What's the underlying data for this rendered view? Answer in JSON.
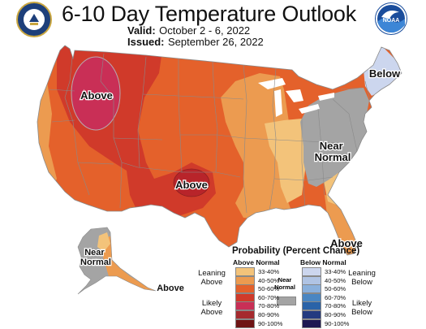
{
  "header": {
    "title": "6-10 Day Temperature Outlook",
    "valid_label": "Valid:",
    "valid_value": "October 2 - 6, 2022",
    "issued_label": "Issued:",
    "issued_value": "September 26, 2022",
    "left_logo_icon": "department-of-commerce-seal",
    "right_logo_icon": "noaa-logo",
    "noaa_logo_text": "NOAA"
  },
  "map": {
    "region_labels": {
      "west_above": "Above",
      "texas_above": "Above",
      "northeast_below": "Below",
      "east_near_normal": "Near Normal",
      "florida_above": "Above",
      "alaska_near_normal": "Near Normal",
      "alaska_above": "Above"
    },
    "colors": {
      "above_33_40": "#f3c37a",
      "above_40_50": "#ec9b50",
      "above_50_60": "#e4612b",
      "above_60_70": "#d03a2a",
      "above_70_80": "#c92f56",
      "above_80_90": "#a52a2e",
      "above_90_100": "#6e1414",
      "near_normal": "#a4a4a4",
      "below_33_40": "#ccd6ee",
      "below_40_50": "#b0c4e4",
      "below_50_60": "#8ab0dc",
      "below_60_70": "#4a86c2",
      "below_70_80": "#2a63a8",
      "below_80_90": "#233a80",
      "below_90_100": "#1d1852",
      "border": "#8a8a8a",
      "water": "#ffffff"
    }
  },
  "legend": {
    "title": "Probability (Percent Chance)",
    "above_header": "Above Normal",
    "below_header": "Below Normal",
    "near_normal_label": "Near Normal",
    "leaning_above": "Leaning Above",
    "likely_above": "Likely Above",
    "leaning_below": "Leaning Below",
    "likely_below": "Likely Below",
    "above_rows": [
      {
        "label": "33-40%",
        "color": "#f3c37a"
      },
      {
        "label": "40-50%",
        "color": "#ec9b50"
      },
      {
        "label": "50-60%",
        "color": "#e4612b"
      },
      {
        "label": "60-70%",
        "color": "#d03a2a"
      },
      {
        "label": "70-80%",
        "color": "#c92f56"
      },
      {
        "label": "80-90%",
        "color": "#a52a2e"
      },
      {
        "label": "90-100%",
        "color": "#6e1414"
      }
    ],
    "below_rows": [
      {
        "label": "33-40%",
        "color": "#ccd6ee"
      },
      {
        "label": "40-50%",
        "color": "#b0c4e4"
      },
      {
        "label": "50-60%",
        "color": "#8ab0dc"
      },
      {
        "label": "60-70%",
        "color": "#4a86c2"
      },
      {
        "label": "70-80%",
        "color": "#2a63a8"
      },
      {
        "label": "80-90%",
        "color": "#233a80"
      },
      {
        "label": "90-100%",
        "color": "#1d1852"
      }
    ]
  }
}
